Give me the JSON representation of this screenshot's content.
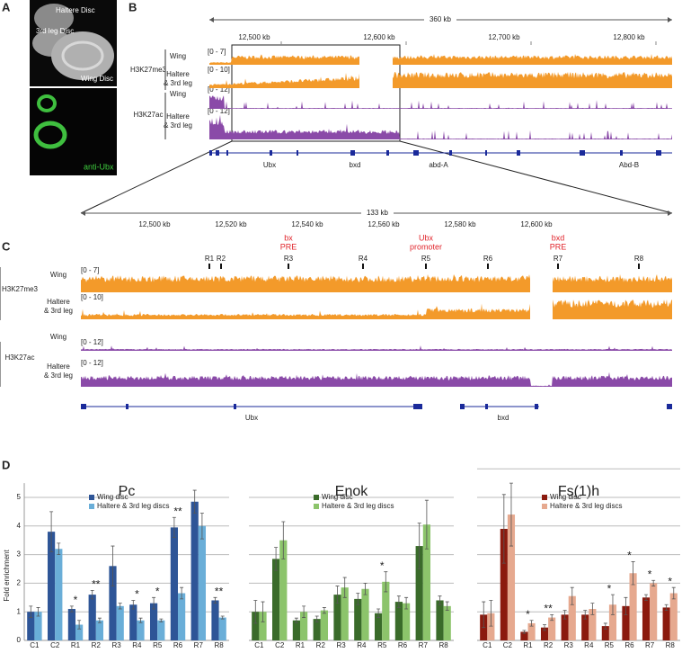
{
  "panel_a": {
    "label": "A",
    "top_image": {
      "labels": [
        "Haltere Disc",
        "3rd leg Disc",
        "Wing Disc"
      ]
    },
    "bottom_image": {
      "label": "anti-Ubx"
    }
  },
  "panel_b": {
    "label": "B",
    "scale": "360 kb",
    "coordinates": [
      "12,500 kb",
      "12,600 kb",
      "12,700 kb",
      "12,800 kb"
    ],
    "tracks": [
      {
        "mark": "H3K27me3",
        "rows": [
          {
            "tissue": [
              "Wing"
            ],
            "range": "[0 - 7]"
          },
          {
            "tissue": [
              "Haltere",
              "& 3rd leg"
            ],
            "range": "[0 - 10]"
          }
        ]
      },
      {
        "mark": "H3K27ac",
        "rows": [
          {
            "tissue": [
              "Wing"
            ],
            "range": "[0 - 12]"
          },
          {
            "tissue": [
              "Haltere",
              "& 3rd leg"
            ],
            "range": "[0 - 12]"
          }
        ]
      }
    ],
    "genes": [
      "Ubx",
      "bxd",
      "abd-A",
      "Abd-B"
    ]
  },
  "panel_c": {
    "label": "C",
    "scale": "133 kb",
    "coordinates": [
      "12,500 kb",
      "12,520 kb",
      "12,540 kb",
      "12,560 kb",
      "12,580 kb",
      "12,600 kb"
    ],
    "elements": [
      {
        "text": [
          "bx",
          "PRE"
        ]
      },
      {
        "text": [
          "Ubx",
          "promoter"
        ]
      },
      {
        "text": [
          "bxd",
          "PRE"
        ]
      }
    ],
    "regions": [
      "R1",
      "R2",
      "R3",
      "R4",
      "R5",
      "R6",
      "R7",
      "R8"
    ],
    "tracks": [
      {
        "mark": "H3K27me3",
        "rows": [
          {
            "tissue": [
              "Wing"
            ],
            "range": "[0 - 7]"
          },
          {
            "tissue": [
              "Haltere",
              "& 3rd leg"
            ],
            "range": "[0 - 10]"
          }
        ]
      },
      {
        "mark": "H3K27ac",
        "rows": [
          {
            "tissue": [
              "Wing"
            ],
            "range": "[0 - 12]"
          },
          {
            "tissue": [
              "Haltere",
              "& 3rd leg"
            ],
            "range": "[0 - 12]"
          }
        ]
      }
    ],
    "genes": [
      "Ubx",
      "bxd"
    ]
  },
  "panel_d": {
    "label": "D"
  },
  "chart_data": [
    {
      "type": "bar",
      "title": "Pc",
      "y_label": "Fold enrichment",
      "categories": [
        "C1",
        "C2",
        "R1",
        "R2",
        "R3",
        "R4",
        "R5",
        "R6",
        "R7",
        "R8"
      ],
      "ylim": [
        0,
        5.5
      ],
      "yticks": [
        0,
        1,
        2,
        3,
        4,
        5
      ],
      "grid": true,
      "series": [
        {
          "name": "Wing disc",
          "color": "#2e5597",
          "values": [
            1.0,
            3.8,
            1.1,
            1.6,
            2.6,
            1.25,
            1.3,
            3.95,
            4.85,
            1.4
          ],
          "errors": [
            0.2,
            0.7,
            0.1,
            0.15,
            0.7,
            0.15,
            0.2,
            0.35,
            0.4,
            0.1
          ]
        },
        {
          "name": "Haltere & 3rd leg discs",
          "color": "#6aaed8",
          "values": [
            1.0,
            3.2,
            0.55,
            0.7,
            1.2,
            0.7,
            0.7,
            1.65,
            4.0,
            0.8
          ],
          "errors": [
            0.15,
            0.2,
            0.15,
            0.08,
            0.1,
            0.08,
            0.05,
            0.2,
            0.45,
            0.05
          ]
        }
      ],
      "significance": [
        null,
        null,
        "*",
        "**",
        null,
        "*",
        "*",
        "**",
        null,
        "**"
      ]
    },
    {
      "type": "bar",
      "title": "Enok",
      "categories": [
        "C1",
        "C2",
        "R1",
        "R2",
        "R3",
        "R4",
        "R5",
        "R6",
        "R7",
        "R8"
      ],
      "ylim": [
        0,
        5.5
      ],
      "grid": true,
      "gridlines": [
        1,
        2,
        3,
        4,
        5
      ],
      "series": [
        {
          "name": "Wing disc",
          "color": "#3a6b2a",
          "values": [
            1.0,
            2.85,
            0.7,
            0.75,
            1.6,
            1.45,
            0.95,
            1.35,
            3.3,
            1.4
          ],
          "errors": [
            0.4,
            0.4,
            0.08,
            0.1,
            0.3,
            0.2,
            0.15,
            0.2,
            0.8,
            0.15
          ]
        },
        {
          "name": "Haltere & 3rd leg discs",
          "color": "#8cc46b",
          "values": [
            1.0,
            3.5,
            1.0,
            1.05,
            1.85,
            1.8,
            2.05,
            1.3,
            4.05,
            1.2
          ],
          "errors": [
            0.35,
            0.65,
            0.2,
            0.1,
            0.35,
            0.2,
            0.35,
            0.2,
            0.85,
            0.15
          ]
        }
      ],
      "significance": [
        null,
        null,
        null,
        null,
        null,
        null,
        "*",
        null,
        null,
        null
      ]
    },
    {
      "type": "bar",
      "title": "Fs(1)h",
      "categories": [
        "C1",
        "C2",
        "R1",
        "R2",
        "R3",
        "R4",
        "R5",
        "R6",
        "R7",
        "R8"
      ],
      "ylim": [
        0,
        6.5
      ],
      "grid": true,
      "gridlines": [
        1,
        2,
        3,
        4,
        5,
        6
      ],
      "series": [
        {
          "name": "Wing disc",
          "color": "#8b1a0e",
          "values": [
            0.9,
            3.9,
            0.3,
            0.45,
            0.9,
            0.9,
            0.5,
            1.2,
            1.5,
            1.15
          ],
          "errors": [
            0.45,
            1.2,
            0.05,
            0.1,
            0.15,
            0.15,
            0.1,
            0.3,
            0.1,
            0.1
          ]
        },
        {
          "name": "Haltere & 3rd leg discs",
          "color": "#e6a98f",
          "values": [
            0.95,
            4.4,
            0.6,
            0.8,
            1.55,
            1.1,
            1.25,
            2.35,
            2.0,
            1.65
          ],
          "errors": [
            0.45,
            1.1,
            0.1,
            0.1,
            0.3,
            0.2,
            0.35,
            0.4,
            0.1,
            0.2
          ]
        }
      ],
      "significance": [
        null,
        null,
        "*",
        "**",
        null,
        null,
        "*",
        "*",
        "*",
        "*"
      ]
    }
  ]
}
